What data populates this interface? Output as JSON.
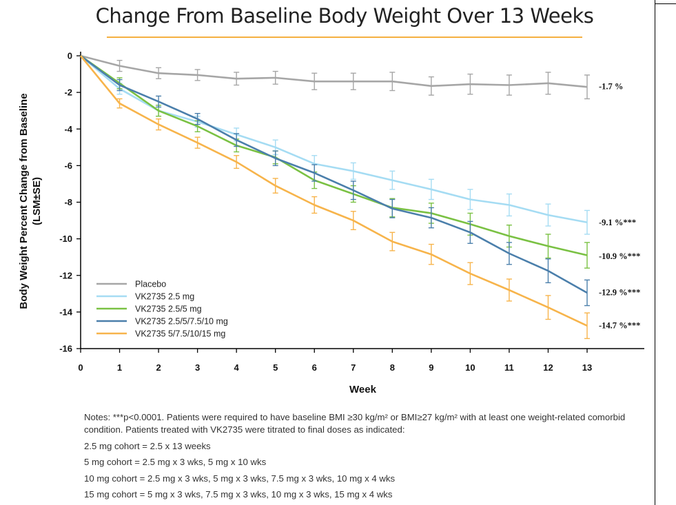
{
  "chart_data": {
    "type": "line",
    "title": "Change From Baseline Body Weight Over 13 Weeks",
    "xlabel": "Week",
    "ylabel_lines": [
      "Body Weight Percent Change from Baseline",
      "(LSM±SE)"
    ],
    "x": [
      0,
      1,
      2,
      3,
      4,
      5,
      6,
      7,
      8,
      9,
      10,
      11,
      12,
      13
    ],
    "xlim": [
      0,
      13
    ],
    "ylim": [
      -16,
      0
    ],
    "yticks": [
      0,
      -2,
      -4,
      -6,
      -8,
      -10,
      -12,
      -14,
      -16
    ],
    "grid": false,
    "legend_position": "bottom-left",
    "series": [
      {
        "name": "Placebo",
        "color": "#a6a6a6",
        "values": [
          0,
          -0.55,
          -0.95,
          -1.05,
          -1.25,
          -1.2,
          -1.4,
          -1.4,
          -1.4,
          -1.65,
          -1.55,
          -1.6,
          -1.5,
          -1.7
        ],
        "se": [
          0,
          0.3,
          0.3,
          0.3,
          0.35,
          0.35,
          0.45,
          0.45,
          0.5,
          0.5,
          0.55,
          0.55,
          0.6,
          0.65
        ],
        "end_label": "-1.7 %"
      },
      {
        "name": "VK2735 2.5 mg",
        "color": "#a5dcf3",
        "values": [
          0,
          -1.8,
          -3.0,
          -3.6,
          -4.3,
          -5.0,
          -5.9,
          -6.3,
          -6.8,
          -7.3,
          -7.85,
          -8.15,
          -8.7,
          -9.1
        ],
        "se": [
          0,
          0.3,
          0.3,
          0.3,
          0.35,
          0.4,
          0.45,
          0.45,
          0.5,
          0.55,
          0.55,
          0.6,
          0.6,
          0.65
        ],
        "end_label": "-9.1 %***"
      },
      {
        "name": "VK2735 2.5/5 mg",
        "color": "#7ac143",
        "values": [
          0,
          -1.5,
          -3.0,
          -3.85,
          -4.9,
          -5.55,
          -6.8,
          -7.55,
          -8.3,
          -8.6,
          -9.2,
          -9.85,
          -10.4,
          -10.9
        ],
        "se": [
          0,
          0.3,
          0.3,
          0.3,
          0.35,
          0.35,
          0.45,
          0.45,
          0.5,
          0.55,
          0.6,
          0.6,
          0.65,
          0.7
        ],
        "end_label": "-10.9 %***"
      },
      {
        "name": "VK2735 2.5/5/7.5/10 mg",
        "color": "#4b7fab",
        "values": [
          0,
          -1.6,
          -2.5,
          -3.45,
          -4.6,
          -5.6,
          -6.4,
          -7.35,
          -8.35,
          -8.85,
          -9.65,
          -10.8,
          -11.75,
          -12.95
        ],
        "se": [
          0,
          0.3,
          0.3,
          0.3,
          0.35,
          0.4,
          0.45,
          0.5,
          0.5,
          0.55,
          0.6,
          0.6,
          0.65,
          0.7
        ],
        "end_label": "-12.9 %***"
      },
      {
        "name": "VK2735 5/7.5/10/15 mg",
        "color": "#f7b44b",
        "values": [
          0,
          -2.6,
          -3.75,
          -4.75,
          -5.8,
          -7.1,
          -8.15,
          -9.0,
          -10.15,
          -10.85,
          -11.9,
          -12.8,
          -13.75,
          -14.75
        ],
        "se": [
          0,
          0.25,
          0.3,
          0.3,
          0.35,
          0.4,
          0.45,
          0.5,
          0.5,
          0.55,
          0.6,
          0.6,
          0.65,
          0.7
        ],
        "end_label": "-14.7 %***"
      }
    ]
  },
  "notes": {
    "line1": "Notes: ***p<0.0001. Patients were required to have baseline BMI ≥30 kg/m² or BMI≥27 kg/m² with at least one weight-related comorbid condition. Patients treated with VK2735 were titrated to final doses as indicated:",
    "line2": "2.5 mg cohort = 2.5 x 13 weeks",
    "line3": "5 mg cohort = 2.5 mg x 3 wks, 5 mg x 10 wks",
    "line4": "10 mg cohort = 2.5 mg x 3 wks, 5 mg x 3 wks, 7.5 mg x 3 wks, 10 mg x 4 wks",
    "line5": "15 mg cohort = 5 mg x 3 wks, 7.5 mg x 3 wks, 10 mg x 3 wks, 15 mg x 4 wks"
  }
}
